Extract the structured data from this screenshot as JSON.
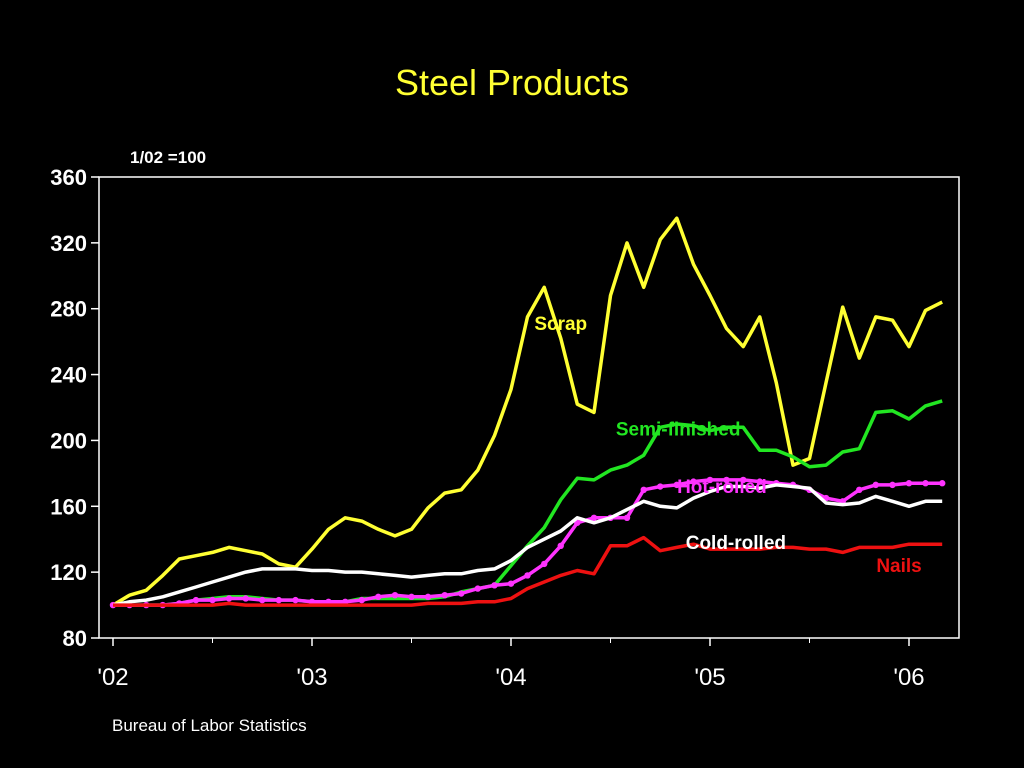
{
  "page": {
    "title": "Steel Products",
    "source": "Bureau of Labor Statistics"
  },
  "chart_data": {
    "type": "line",
    "title": "Steel Products",
    "subtitle": "1/02 =100",
    "xlabel": "",
    "ylabel": "",
    "ylim": [
      80,
      360
    ],
    "y_ticks": [
      80,
      120,
      160,
      200,
      240,
      280,
      320,
      360
    ],
    "xlim": [
      2002,
      2006.25
    ],
    "x_ticks": [
      {
        "value": 2002,
        "label": "'02"
      },
      {
        "value": 2003,
        "label": "'03"
      },
      {
        "value": 2004,
        "label": "'04"
      },
      {
        "value": 2005,
        "label": "'05"
      },
      {
        "value": 2006,
        "label": "'06"
      }
    ],
    "grid": false,
    "legend": "inline labels",
    "x": [
      2002.0,
      2002.083,
      2002.167,
      2002.25,
      2002.333,
      2002.417,
      2002.5,
      2002.583,
      2002.667,
      2002.75,
      2002.833,
      2002.917,
      2003.0,
      2003.083,
      2003.167,
      2003.25,
      2003.333,
      2003.417,
      2003.5,
      2003.583,
      2003.667,
      2003.75,
      2003.833,
      2003.917,
      2004.0,
      2004.083,
      2004.167,
      2004.25,
      2004.333,
      2004.417,
      2004.5,
      2004.583,
      2004.667,
      2004.75,
      2004.833,
      2004.917,
      2005.0,
      2005.083,
      2005.167,
      2005.25,
      2005.333,
      2005.417,
      2005.5,
      2005.583,
      2005.667,
      2005.75,
      2005.833,
      2005.917,
      2006.0,
      2006.083,
      2006.167
    ],
    "series": [
      {
        "name": "Scrap",
        "color": "#ffff33",
        "label_x": 2004.25,
        "label_y": 267,
        "markers": false,
        "values": [
          100,
          106,
          109,
          118,
          128,
          130,
          132,
          135,
          133,
          131,
          125,
          123,
          134,
          146,
          153,
          151,
          146,
          142,
          146,
          159,
          168,
          170,
          182,
          203,
          231,
          275,
          293,
          262,
          222,
          217,
          288,
          320,
          293,
          322,
          335,
          307,
          288,
          268,
          257,
          275,
          235,
          185,
          189,
          235,
          281,
          250,
          275,
          273,
          257,
          279,
          284
        ]
      },
      {
        "name": "Semi-finished",
        "color": "#22e622",
        "label_x": 2004.84,
        "label_y": 203,
        "markers": false,
        "values": [
          100,
          100,
          100,
          100,
          101,
          103,
          104,
          105,
          105,
          104,
          103,
          103,
          102,
          102,
          102,
          104,
          104,
          104,
          104,
          104,
          105,
          108,
          110,
          112,
          124,
          136,
          147,
          164,
          177,
          176,
          182,
          185,
          191,
          208,
          210,
          209,
          206,
          208,
          208,
          194,
          194,
          190,
          184,
          185,
          193,
          195,
          217,
          218,
          213,
          221,
          224
        ]
      },
      {
        "name": "Hot-rolled",
        "color": "#ff33ff",
        "label_x": 2005.06,
        "label_y": 168,
        "markers": true,
        "values": [
          100,
          100,
          100,
          100,
          101,
          103,
          103,
          104,
          104,
          103,
          103,
          103,
          102,
          102,
          102,
          103,
          105,
          106,
          105,
          105,
          106,
          107,
          110,
          112,
          113,
          118,
          125,
          136,
          150,
          153,
          153,
          153,
          170,
          172,
          173,
          175,
          176,
          176,
          176,
          175,
          174,
          173,
          170,
          165,
          163,
          170,
          173,
          173,
          174,
          174,
          174
        ]
      },
      {
        "name": "Cold-rolled",
        "color": "#ffffff",
        "label_x": 2005.13,
        "label_y": 134,
        "markers": false,
        "values": [
          100,
          102,
          103,
          105,
          108,
          111,
          114,
          117,
          120,
          122,
          122,
          122,
          121,
          121,
          120,
          120,
          119,
          118,
          117,
          118,
          119,
          119,
          121,
          122,
          127,
          135,
          140,
          145,
          153,
          150,
          153,
          158,
          163,
          160,
          159,
          165,
          169,
          172,
          172,
          171,
          173,
          172,
          171,
          162,
          161,
          162,
          166,
          163,
          160,
          163,
          163
        ]
      },
      {
        "name": "Nails",
        "color": "#ee1111",
        "label_x": 2005.95,
        "label_y": 120,
        "markers": false,
        "values": [
          100,
          100,
          100,
          100,
          100,
          100,
          100,
          101,
          100,
          100,
          100,
          100,
          100,
          100,
          100,
          100,
          100,
          100,
          100,
          101,
          101,
          101,
          102,
          102,
          104,
          110,
          114,
          118,
          121,
          119,
          136,
          136,
          141,
          133,
          135,
          137,
          134,
          134,
          134,
          134,
          135,
          135,
          134,
          134,
          132,
          135,
          135,
          135,
          137,
          137,
          137
        ]
      }
    ]
  }
}
